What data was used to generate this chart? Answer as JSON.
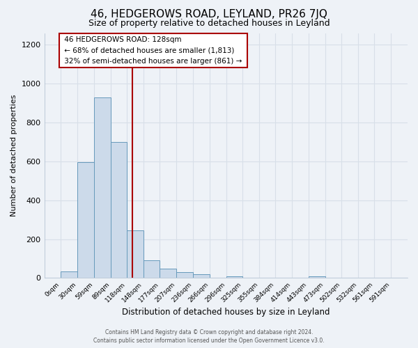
{
  "title": "46, HEDGEROWS ROAD, LEYLAND, PR26 7JQ",
  "subtitle": "Size of property relative to detached houses in Leyland",
  "xlabel": "Distribution of detached houses by size in Leyland",
  "ylabel": "Number of detached properties",
  "bar_edges": [
    0,
    30,
    59,
    89,
    118,
    148,
    177,
    207,
    236,
    266,
    296,
    325,
    355,
    384,
    414,
    443,
    473,
    502,
    532,
    561,
    591
  ],
  "bar_heights": [
    35,
    595,
    930,
    700,
    245,
    90,
    50,
    32,
    20,
    0,
    10,
    0,
    0,
    0,
    0,
    10,
    0,
    0,
    0,
    0
  ],
  "bar_color": "#ccdaea",
  "bar_edgecolor": "#6699bb",
  "vline_x": 128,
  "vline_color": "#aa0000",
  "ylim": [
    0,
    1260
  ],
  "yticks": [
    0,
    200,
    400,
    600,
    800,
    1000,
    1200
  ],
  "annotation_title": "46 HEDGEROWS ROAD: 128sqm",
  "annotation_line1": "← 68% of detached houses are smaller (1,813)",
  "annotation_line2": "32% of semi-detached houses are larger (861) →",
  "footer1": "Contains HM Land Registry data © Crown copyright and database right 2024.",
  "footer2": "Contains public sector information licensed under the Open Government Licence v3.0.",
  "background_color": "#eef2f7",
  "grid_color": "#d8dfe8"
}
